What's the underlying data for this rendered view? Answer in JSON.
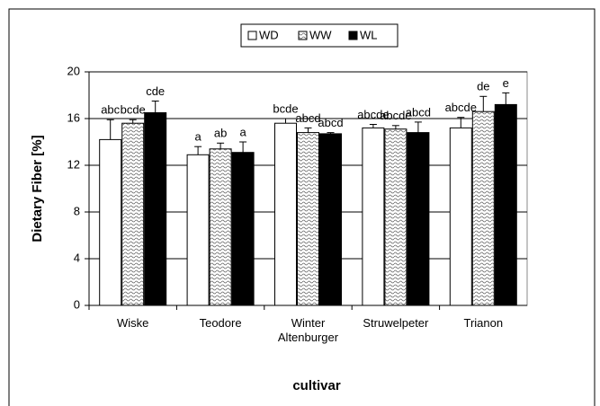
{
  "chart_data": {
    "type": "bar",
    "x_label": "cultivar",
    "y_label": "Dietary Fiber [%]",
    "categories": [
      "Wiske",
      "Teodore",
      "Winter Altenburger",
      "Struwelpeter",
      "Trianon"
    ],
    "series": [
      {
        "name": "WD",
        "color": "#ffffff",
        "pattern": "none",
        "values": [
          14.2,
          12.9,
          15.6,
          15.2,
          15.2
        ],
        "errors": [
          1.7,
          0.7,
          0.4,
          0.3,
          0.9
        ],
        "annotations": [
          "abc",
          "a",
          "bcde",
          "abcde",
          "abcde"
        ]
      },
      {
        "name": "WW",
        "color": "#ffffff",
        "pattern": "wave",
        "values": [
          15.6,
          13.4,
          14.8,
          15.1,
          16.6
        ],
        "errors": [
          0.3,
          0.5,
          0.4,
          0.3,
          1.3
        ],
        "annotations": [
          "bcde",
          "ab",
          "abcd",
          "abcde",
          "de"
        ]
      },
      {
        "name": "WL",
        "color": "#000000",
        "pattern": "none",
        "values": [
          16.5,
          13.1,
          14.7,
          14.8,
          17.2
        ],
        "errors": [
          1.0,
          0.9,
          0.1,
          0.9,
          1.0
        ],
        "annotations": [
          "cde",
          "a",
          "abcd",
          "abcd",
          "e"
        ]
      }
    ],
    "ylim": [
      0,
      20
    ],
    "yticks": [
      0,
      4,
      8,
      12,
      16,
      20
    ],
    "grid": true,
    "legend": "top"
  }
}
